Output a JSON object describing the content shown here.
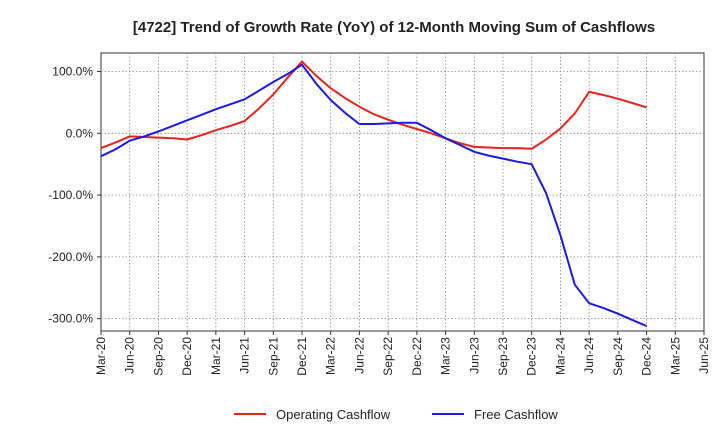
{
  "chart_data": {
    "type": "line",
    "title": "[4722]  Trend of Growth Rate (YoY) of 12-Month Moving Sum of Cashflows",
    "xlabel": "",
    "ylabel": "",
    "categories": [
      "Mar-20",
      "Jun-20",
      "Sep-20",
      "Dec-20",
      "Mar-21",
      "Jun-21",
      "Sep-21",
      "Dec-21",
      "Mar-22",
      "Jun-22",
      "Sep-22",
      "Dec-22",
      "Mar-23",
      "Jun-23",
      "Sep-23",
      "Dec-23",
      "Mar-24",
      "Jun-24",
      "Sep-24",
      "Dec-24",
      "Mar-25",
      "Jun-25"
    ],
    "ylim": [
      -320,
      130
    ],
    "yticks": [
      100,
      0,
      -100,
      -200,
      -300
    ],
    "ytick_labels": [
      "100.0%",
      "0.0%",
      "-100.0%",
      "-200.0%",
      "-300.0%"
    ],
    "grid": true,
    "legend_position": "bottom",
    "series": [
      {
        "name": "Operating Cashflow",
        "color": "#e8231c",
        "x": [
          0,
          0.5,
          1,
          1.5,
          2,
          2.5,
          3,
          3.5,
          4,
          4.5,
          5,
          5.5,
          6,
          6.5,
          7,
          7.5,
          8,
          8.5,
          9,
          9.5,
          10,
          10.5,
          11,
          11.5,
          12,
          12.5,
          13,
          13.5,
          14,
          14.5,
          15,
          15.5,
          16,
          16.5,
          17,
          17.5,
          18,
          18.5,
          19
        ],
        "values": [
          -24,
          -15,
          -5,
          -6,
          -7,
          -8,
          -10,
          -3,
          5,
          12,
          20,
          40,
          63,
          90,
          116,
          93,
          73,
          57,
          43,
          31,
          22,
          14,
          7,
          0,
          -8,
          -16,
          -22,
          -23,
          -24,
          -24,
          -25,
          -10,
          8,
          32,
          67,
          62,
          56,
          49,
          42
        ]
      },
      {
        "name": "Free Cashflow",
        "color": "#1a1ae6",
        "x": [
          0,
          0.5,
          1,
          1.5,
          2,
          2.5,
          3,
          3.5,
          4,
          4.5,
          5,
          5.5,
          6,
          6.5,
          7,
          7.5,
          8,
          8.5,
          9,
          9.5,
          10,
          10.5,
          11,
          11.5,
          12,
          12.5,
          13,
          13.5,
          14,
          14.5,
          15,
          15.5,
          16,
          16.5,
          17,
          17.5,
          18,
          18.5,
          19
        ],
        "values": [
          -37,
          -26,
          -12,
          -5,
          3,
          12,
          21,
          30,
          39,
          47,
          55,
          69,
          83,
          96,
          111,
          80,
          54,
          33,
          15,
          15,
          16,
          17,
          17,
          5,
          -8,
          -19,
          -30,
          -36,
          -41,
          -46,
          -50,
          -97,
          -165,
          -245,
          -275,
          -283,
          -292,
          -302,
          -312
        ]
      }
    ]
  }
}
